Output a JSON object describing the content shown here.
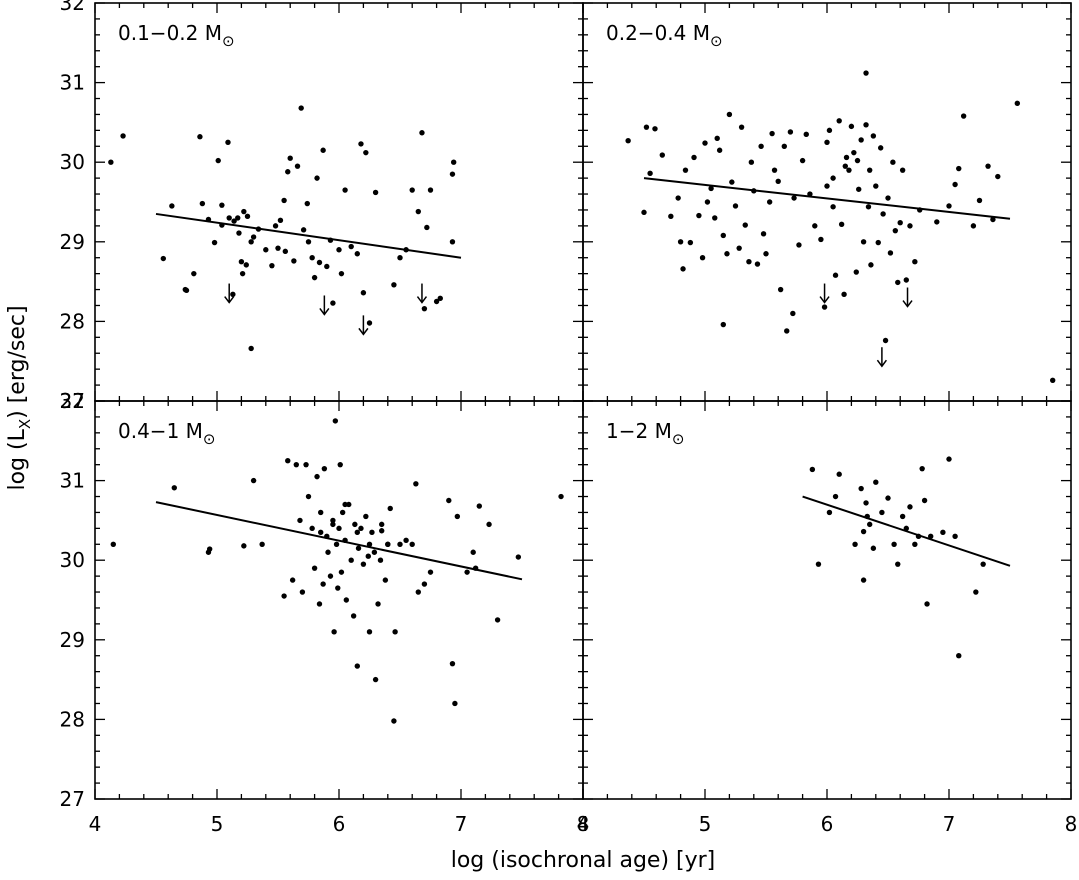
{
  "figure": {
    "xlabel": "log (isochronal age) [yr]",
    "ylabel_prefix": "log (L",
    "ylabel_sub": "X",
    "ylabel_suffix": ") [erg/sec]",
    "colors": {
      "ink": "#000000",
      "background": "#ffffff"
    }
  },
  "chart_data": [
    {
      "type": "scatter",
      "panel": "top-left",
      "label": "0.1−0.2 M",
      "label_sub": "⊙",
      "xlim": [
        4,
        8
      ],
      "ylim": [
        27,
        32
      ],
      "xticks": [
        4,
        5,
        6,
        7,
        8
      ],
      "yticks": [
        27,
        28,
        29,
        30,
        31,
        32
      ],
      "show_x_tick_labels": false,
      "show_y_tick_labels": true,
      "fit_line": [
        [
          4.5,
          29.35
        ],
        [
          7.0,
          28.8
        ]
      ],
      "points": [
        [
          4.13,
          30.0
        ],
        [
          4.23,
          30.33
        ],
        [
          4.56,
          28.79
        ],
        [
          4.63,
          29.45
        ],
        [
          4.75,
          28.39
        ],
        [
          4.81,
          28.6
        ],
        [
          4.86,
          30.32
        ],
        [
          4.88,
          29.48
        ],
        [
          4.93,
          29.28
        ],
        [
          4.98,
          28.99
        ],
        [
          5.01,
          30.02
        ],
        [
          5.04,
          29.46
        ],
        [
          5.04,
          29.21
        ],
        [
          5.09,
          30.25
        ],
        [
          5.1,
          29.3
        ],
        [
          5.13,
          28.34
        ],
        [
          5.14,
          29.26
        ],
        [
          5.17,
          29.3
        ],
        [
          5.18,
          29.11
        ],
        [
          5.2,
          28.75
        ],
        [
          5.21,
          28.6
        ],
        [
          5.22,
          29.38
        ],
        [
          5.24,
          28.71
        ],
        [
          5.25,
          29.32
        ],
        [
          5.28,
          27.66
        ],
        [
          5.28,
          29.0
        ],
        [
          5.3,
          29.06
        ],
        [
          5.34,
          29.16
        ],
        [
          5.4,
          28.9
        ],
        [
          5.45,
          28.7
        ],
        [
          5.48,
          29.2
        ],
        [
          5.5,
          28.92
        ],
        [
          5.52,
          29.27
        ],
        [
          5.55,
          29.52
        ],
        [
          5.58,
          29.88
        ],
        [
          5.6,
          30.05
        ],
        [
          5.63,
          28.76
        ],
        [
          5.66,
          29.95
        ],
        [
          5.69,
          30.68
        ],
        [
          5.71,
          29.15
        ],
        [
          5.74,
          29.48
        ],
        [
          5.75,
          29.0
        ],
        [
          5.78,
          28.8
        ],
        [
          5.8,
          28.55
        ],
        [
          5.82,
          29.8
        ],
        [
          5.84,
          28.74
        ],
        [
          5.87,
          30.15
        ],
        [
          5.9,
          28.69
        ],
        [
          5.93,
          29.02
        ],
        [
          5.95,
          28.23
        ],
        [
          6.0,
          28.9
        ],
        [
          6.02,
          28.6
        ],
        [
          6.05,
          29.65
        ],
        [
          6.1,
          28.94
        ],
        [
          6.15,
          28.85
        ],
        [
          6.18,
          30.23
        ],
        [
          6.2,
          28.36
        ],
        [
          6.22,
          30.12
        ],
        [
          6.25,
          27.98
        ],
        [
          6.3,
          29.62
        ],
        [
          6.45,
          28.46
        ],
        [
          6.5,
          28.8
        ],
        [
          6.55,
          28.9
        ],
        [
          6.6,
          29.65
        ],
        [
          6.65,
          29.38
        ],
        [
          6.68,
          30.37
        ],
        [
          6.7,
          28.16
        ],
        [
          6.72,
          29.18
        ],
        [
          6.75,
          29.65
        ],
        [
          6.8,
          28.25
        ],
        [
          6.83,
          28.29
        ],
        [
          6.93,
          29.0
        ],
        [
          6.93,
          29.85
        ],
        [
          6.94,
          30.0
        ],
        [
          4.74,
          28.4
        ],
        [
          5.56,
          28.88
        ]
      ],
      "upper_limits": [
        [
          5.1,
          28.35
        ],
        [
          5.88,
          28.2
        ],
        [
          6.2,
          27.95
        ],
        [
          6.68,
          28.35
        ]
      ]
    },
    {
      "type": "scatter",
      "panel": "top-right",
      "label": "0.2−0.4 M",
      "label_sub": "⊙",
      "xlim": [
        4,
        8
      ],
      "ylim": [
        27,
        32
      ],
      "xticks": [
        4,
        5,
        6,
        7,
        8
      ],
      "yticks": [
        27,
        28,
        29,
        30,
        31,
        32
      ],
      "show_x_tick_labels": false,
      "show_y_tick_labels": false,
      "fit_line": [
        [
          4.5,
          29.8
        ],
        [
          7.5,
          29.29
        ]
      ],
      "points": [
        [
          4.37,
          30.27
        ],
        [
          4.5,
          29.37
        ],
        [
          4.52,
          30.44
        ],
        [
          4.55,
          29.86
        ],
        [
          4.59,
          30.42
        ],
        [
          4.65,
          30.09
        ],
        [
          4.72,
          29.32
        ],
        [
          4.78,
          29.55
        ],
        [
          4.8,
          29.0
        ],
        [
          4.82,
          28.66
        ],
        [
          4.84,
          29.9
        ],
        [
          4.88,
          28.99
        ],
        [
          4.91,
          30.06
        ],
        [
          4.95,
          29.33
        ],
        [
          4.98,
          28.8
        ],
        [
          5.0,
          30.24
        ],
        [
          5.02,
          29.5
        ],
        [
          5.05,
          29.67
        ],
        [
          5.08,
          29.3
        ],
        [
          5.1,
          30.3
        ],
        [
          5.12,
          30.15
        ],
        [
          5.15,
          29.08
        ],
        [
          5.18,
          28.85
        ],
        [
          5.2,
          30.6
        ],
        [
          5.22,
          29.75
        ],
        [
          5.25,
          29.45
        ],
        [
          5.28,
          28.92
        ],
        [
          5.3,
          30.44
        ],
        [
          5.33,
          29.21
        ],
        [
          5.36,
          28.75
        ],
        [
          5.38,
          30.0
        ],
        [
          5.4,
          29.64
        ],
        [
          5.43,
          28.72
        ],
        [
          5.46,
          30.2
        ],
        [
          5.48,
          29.1
        ],
        [
          5.5,
          28.85
        ],
        [
          5.53,
          29.5
        ],
        [
          5.55,
          30.36
        ],
        [
          5.57,
          29.9
        ],
        [
          5.6,
          29.76
        ],
        [
          5.62,
          28.4
        ],
        [
          5.65,
          30.2
        ],
        [
          5.67,
          27.88
        ],
        [
          5.7,
          30.38
        ],
        [
          5.73,
          29.55
        ],
        [
          5.77,
          28.96
        ],
        [
          5.8,
          30.02
        ],
        [
          5.83,
          30.35
        ],
        [
          5.86,
          29.6
        ],
        [
          5.9,
          29.2
        ],
        [
          5.95,
          29.03
        ],
        [
          5.98,
          28.18
        ],
        [
          6.0,
          30.25
        ],
        [
          6.02,
          30.4
        ],
        [
          6.05,
          29.8
        ],
        [
          6.07,
          28.58
        ],
        [
          6.1,
          30.52
        ],
        [
          6.12,
          29.22
        ],
        [
          6.14,
          28.34
        ],
        [
          6.16,
          30.06
        ],
        [
          6.18,
          29.9
        ],
        [
          6.2,
          30.45
        ],
        [
          6.22,
          30.12
        ],
        [
          6.24,
          28.62
        ],
        [
          6.26,
          29.66
        ],
        [
          6.28,
          30.28
        ],
        [
          6.3,
          29.0
        ],
        [
          6.32,
          30.47
        ],
        [
          6.34,
          29.44
        ],
        [
          6.36,
          28.71
        ],
        [
          6.38,
          30.33
        ],
        [
          6.4,
          29.7
        ],
        [
          6.42,
          28.99
        ],
        [
          6.44,
          30.18
        ],
        [
          6.46,
          29.35
        ],
        [
          6.48,
          27.76
        ],
        [
          6.5,
          29.55
        ],
        [
          6.52,
          28.86
        ],
        [
          6.54,
          30.0
        ],
        [
          6.56,
          29.14
        ],
        [
          6.58,
          28.49
        ],
        [
          6.6,
          29.24
        ],
        [
          6.62,
          29.9
        ],
        [
          6.65,
          28.52
        ],
        [
          6.68,
          29.2
        ],
        [
          6.72,
          28.75
        ],
        [
          6.76,
          29.4
        ],
        [
          6.9,
          29.25
        ],
        [
          7.0,
          29.45
        ],
        [
          7.05,
          29.72
        ],
        [
          7.08,
          29.92
        ],
        [
          7.12,
          30.58
        ],
        [
          7.2,
          29.2
        ],
        [
          7.25,
          29.52
        ],
        [
          7.32,
          29.95
        ],
        [
          7.36,
          29.28
        ],
        [
          7.4,
          29.82
        ],
        [
          7.56,
          30.74
        ],
        [
          7.85,
          27.26
        ],
        [
          6.32,
          31.12
        ],
        [
          5.15,
          27.96
        ],
        [
          5.72,
          28.1
        ],
        [
          6.0,
          29.7
        ],
        [
          6.15,
          29.95
        ],
        [
          6.25,
          30.02
        ],
        [
          6.35,
          29.9
        ],
        [
          6.05,
          29.44
        ]
      ],
      "upper_limits": [
        [
          5.98,
          28.35
        ],
        [
          6.45,
          27.55
        ],
        [
          6.66,
          28.3
        ]
      ]
    },
    {
      "type": "scatter",
      "panel": "bottom-left",
      "label": "0.4−1 M",
      "label_sub": "⊙",
      "xlim": [
        4,
        8
      ],
      "ylim": [
        27,
        32
      ],
      "xticks": [
        4,
        5,
        6,
        7,
        8
      ],
      "yticks": [
        27,
        28,
        29,
        30,
        31,
        32
      ],
      "show_x_tick_labels": true,
      "show_y_tick_labels": true,
      "fit_line": [
        [
          4.5,
          30.73
        ],
        [
          7.5,
          29.76
        ]
      ],
      "points": [
        [
          4.15,
          30.2
        ],
        [
          4.65,
          30.91
        ],
        [
          4.93,
          30.1
        ],
        [
          4.94,
          30.14
        ],
        [
          5.22,
          30.18
        ],
        [
          5.3,
          31.0
        ],
        [
          5.37,
          30.2
        ],
        [
          5.55,
          29.55
        ],
        [
          5.58,
          31.25
        ],
        [
          5.62,
          29.75
        ],
        [
          5.65,
          31.2
        ],
        [
          5.68,
          30.5
        ],
        [
          5.7,
          29.6
        ],
        [
          5.73,
          31.2
        ],
        [
          5.75,
          30.8
        ],
        [
          5.78,
          30.4
        ],
        [
          5.8,
          29.9
        ],
        [
          5.82,
          31.05
        ],
        [
          5.84,
          29.45
        ],
        [
          5.85,
          30.6
        ],
        [
          5.87,
          29.7
        ],
        [
          5.88,
          31.15
        ],
        [
          5.9,
          30.3
        ],
        [
          5.91,
          30.1
        ],
        [
          5.93,
          29.8
        ],
        [
          5.95,
          30.5
        ],
        [
          5.96,
          29.1
        ],
        [
          5.97,
          31.75
        ],
        [
          5.98,
          30.2
        ],
        [
          5.99,
          29.65
        ],
        [
          6.0,
          30.4
        ],
        [
          6.01,
          31.2
        ],
        [
          6.02,
          29.85
        ],
        [
          6.03,
          30.6
        ],
        [
          6.05,
          30.25
        ],
        [
          6.06,
          29.5
        ],
        [
          6.08,
          30.7
        ],
        [
          6.1,
          30.0
        ],
        [
          6.12,
          29.3
        ],
        [
          6.13,
          30.45
        ],
        [
          6.15,
          28.67
        ],
        [
          6.16,
          30.15
        ],
        [
          6.18,
          30.4
        ],
        [
          6.2,
          29.95
        ],
        [
          6.22,
          30.55
        ],
        [
          6.24,
          30.05
        ],
        [
          6.25,
          29.1
        ],
        [
          6.27,
          30.35
        ],
        [
          6.29,
          30.1
        ],
        [
          6.3,
          28.5
        ],
        [
          6.32,
          29.45
        ],
        [
          6.34,
          30.0
        ],
        [
          6.35,
          30.45
        ],
        [
          6.38,
          29.75
        ],
        [
          6.4,
          30.2
        ],
        [
          6.42,
          30.65
        ],
        [
          6.45,
          27.98
        ],
        [
          6.46,
          29.1
        ],
        [
          6.5,
          30.2
        ],
        [
          6.55,
          30.25
        ],
        [
          6.6,
          30.2
        ],
        [
          6.63,
          30.96
        ],
        [
          6.65,
          29.6
        ],
        [
          6.7,
          29.7
        ],
        [
          6.75,
          29.85
        ],
        [
          6.9,
          30.75
        ],
        [
          6.93,
          28.7
        ],
        [
          6.95,
          28.2
        ],
        [
          6.97,
          30.55
        ],
        [
          7.05,
          29.85
        ],
        [
          7.1,
          30.1
        ],
        [
          7.12,
          29.9
        ],
        [
          7.15,
          30.68
        ],
        [
          7.23,
          30.45
        ],
        [
          7.3,
          29.25
        ],
        [
          7.47,
          30.04
        ],
        [
          7.82,
          30.8
        ],
        [
          6.35,
          30.37
        ],
        [
          6.05,
          30.7
        ],
        [
          5.95,
          30.45
        ],
        [
          6.15,
          30.35
        ],
        [
          6.25,
          30.2
        ],
        [
          5.85,
          30.35
        ],
        [
          6.4,
          30.2
        ]
      ],
      "upper_limits": []
    },
    {
      "type": "scatter",
      "panel": "bottom-right",
      "label": "1−2 M",
      "label_sub": "⊙",
      "xlim": [
        4,
        8
      ],
      "ylim": [
        27,
        32
      ],
      "xticks": [
        4,
        5,
        6,
        7,
        8
      ],
      "yticks": [
        27,
        28,
        29,
        30,
        31,
        32
      ],
      "show_x_tick_labels": true,
      "show_y_tick_labels": false,
      "fit_line": [
        [
          5.8,
          30.8
        ],
        [
          7.5,
          29.93
        ]
      ],
      "points": [
        [
          5.88,
          31.14
        ],
        [
          5.93,
          29.95
        ],
        [
          6.02,
          30.6
        ],
        [
          6.07,
          30.8
        ],
        [
          6.1,
          31.08
        ],
        [
          6.23,
          30.2
        ],
        [
          6.28,
          30.9
        ],
        [
          6.3,
          29.75
        ],
        [
          6.3,
          30.36
        ],
        [
          6.32,
          30.72
        ],
        [
          6.33,
          30.55
        ],
        [
          6.35,
          30.45
        ],
        [
          6.38,
          30.15
        ],
        [
          6.4,
          30.98
        ],
        [
          6.45,
          30.6
        ],
        [
          6.5,
          30.78
        ],
        [
          6.55,
          30.2
        ],
        [
          6.58,
          29.95
        ],
        [
          6.62,
          30.55
        ],
        [
          6.65,
          30.4
        ],
        [
          6.68,
          30.67
        ],
        [
          6.72,
          30.2
        ],
        [
          6.75,
          30.3
        ],
        [
          6.78,
          31.15
        ],
        [
          6.8,
          30.75
        ],
        [
          6.82,
          29.45
        ],
        [
          6.85,
          30.3
        ],
        [
          6.95,
          30.35
        ],
        [
          7.0,
          31.27
        ],
        [
          7.05,
          30.3
        ],
        [
          7.08,
          28.8
        ],
        [
          7.22,
          29.6
        ],
        [
          7.28,
          29.95
        ]
      ],
      "upper_limits": []
    }
  ]
}
